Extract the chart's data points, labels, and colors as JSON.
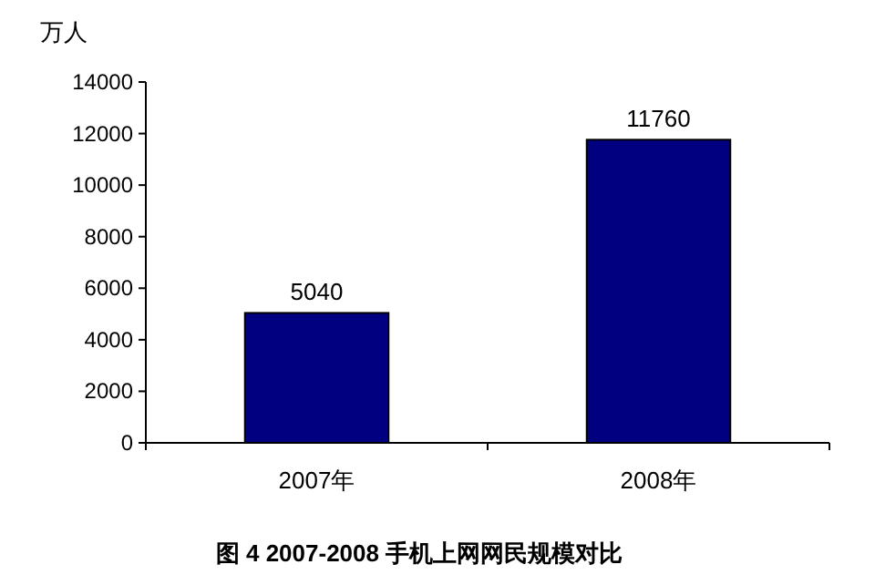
{
  "chart_data": {
    "type": "bar",
    "title": "图 4   2007-2008 手机上网网民规模对比",
    "ylabel": "万人",
    "categories": [
      "2007年",
      "2008年"
    ],
    "values": [
      5040,
      11760
    ],
    "color": "#000080",
    "ylim": [
      0,
      14000
    ],
    "yticks": [
      0,
      2000,
      4000,
      6000,
      8000,
      10000,
      12000,
      14000
    ],
    "data_labels": true,
    "grid": false
  }
}
